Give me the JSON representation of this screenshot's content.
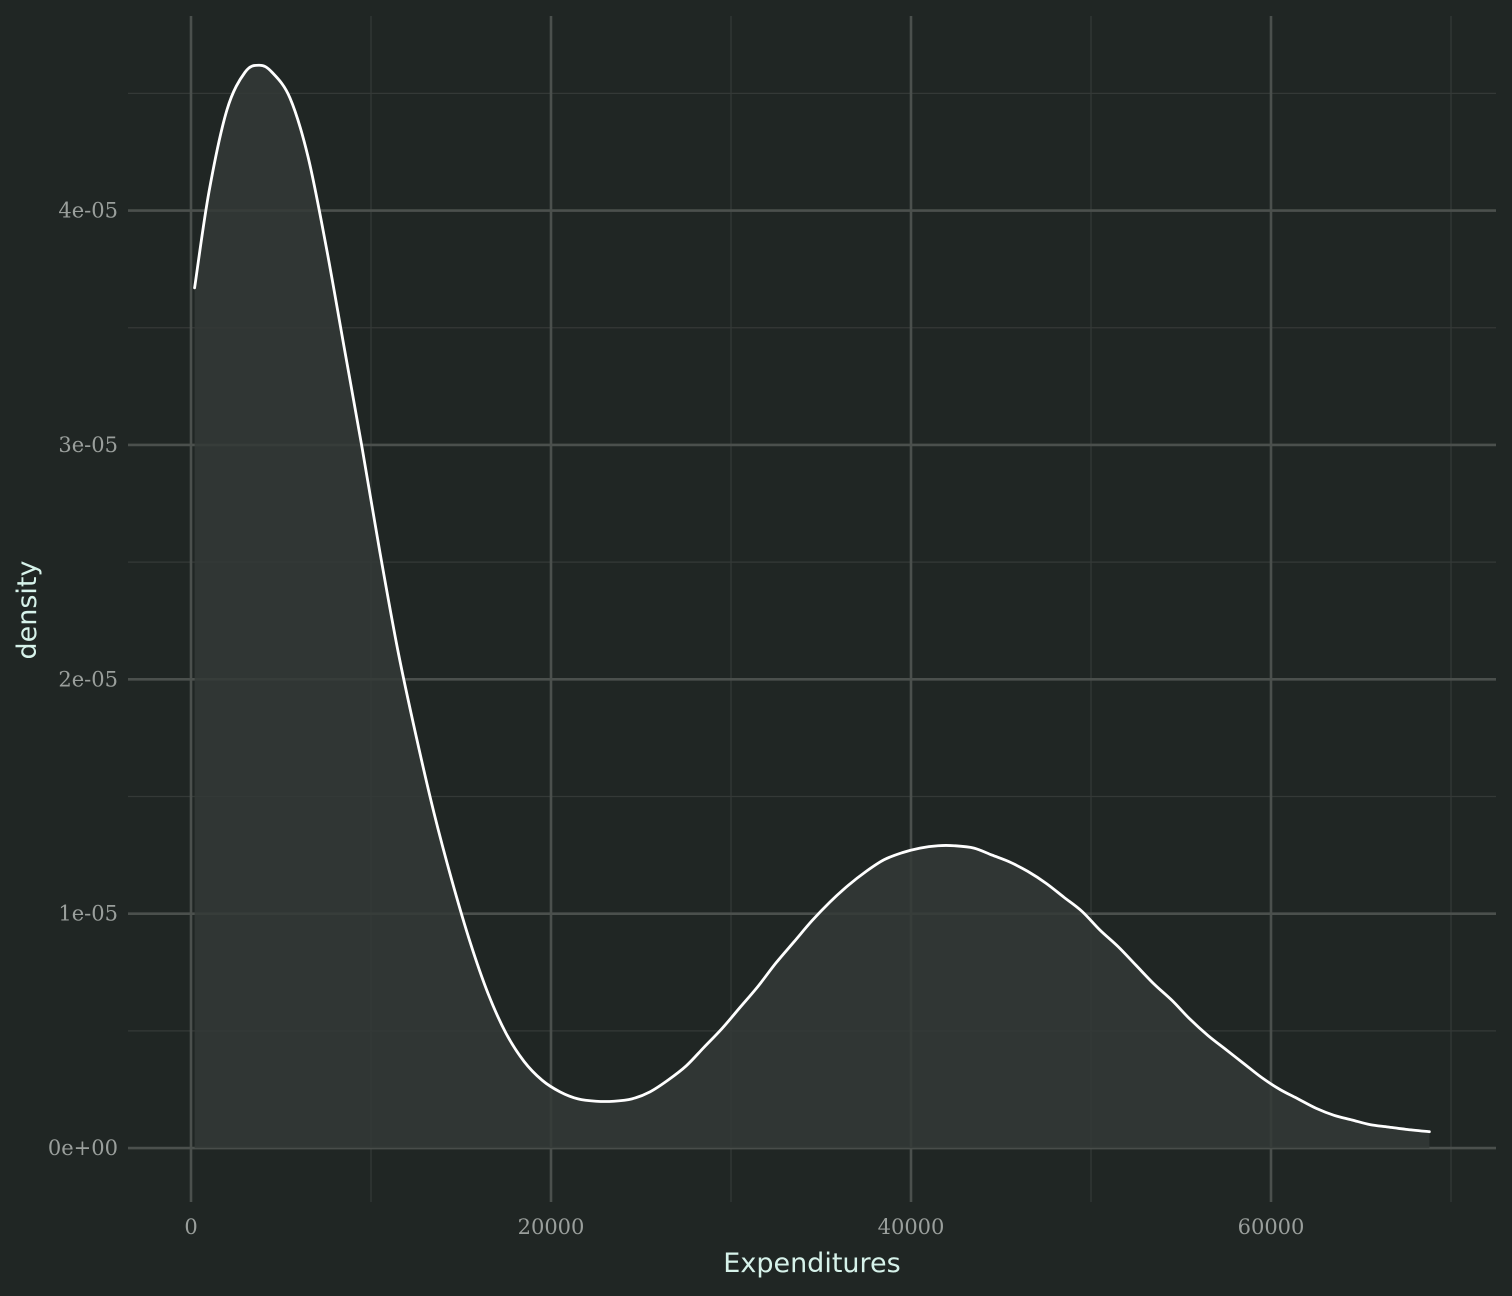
{
  "chart_data": {
    "type": "area",
    "title": "",
    "xlabel": "Expenditures",
    "ylabel": "density",
    "xlim": [
      -3500,
      72500
    ],
    "ylim": [
      -2.3e-06,
      4.83e-05
    ],
    "x_major_ticks": [
      0,
      20000,
      40000,
      60000
    ],
    "x_minor_ticks": [
      10000,
      30000,
      50000,
      70000
    ],
    "x_tick_labels": [
      "0",
      "20000",
      "40000",
      "60000"
    ],
    "y_major_ticks": [
      0,
      1e-05,
      2e-05,
      3e-05,
      4e-05
    ],
    "y_minor_ticks": [
      5e-06,
      1.5e-05,
      2.5e-05,
      3.5e-05,
      4.5e-05
    ],
    "y_tick_labels": [
      "0e+00",
      "1e-05",
      "2e-05",
      "3e-05",
      "4e-05"
    ],
    "grid": true,
    "legend": "none",
    "colors": {
      "background": "#202624",
      "major_grid": "#4b504d",
      "minor_grid": "#343937",
      "fill": "#343937",
      "line": "#ffffff",
      "tick_label": "#9a9f9c",
      "axis_title": "#d6f2ea"
    },
    "series": [
      {
        "x": [
          200,
          1000,
          2000,
          3000,
          3800,
          4500,
          5500,
          6500,
          7500,
          8500,
          9500,
          10500,
          11500,
          12500,
          13500,
          14500,
          15500,
          16500,
          17500,
          18500,
          19500,
          20500,
          21500,
          22500,
          23500,
          24500,
          25500,
          26500,
          27500,
          28500,
          29500,
          30500,
          31500,
          32500,
          33500,
          34500,
          35500,
          36500,
          37500,
          38500,
          39500,
          40500,
          41500,
          42400,
          43500,
          44500,
          45500,
          46500,
          47500,
          48500,
          49500,
          50500,
          51500,
          52500,
          53500,
          54500,
          55500,
          56500,
          57500,
          58500,
          59500,
          60500,
          61500,
          62500,
          63500,
          64500,
          65500,
          66500,
          67500,
          68800
        ],
        "y": [
          3.67e-05,
          4.08e-05,
          4.43e-05,
          4.59e-05,
          4.62e-05,
          4.59e-05,
          4.48e-05,
          4.23e-05,
          3.85e-05,
          3.42e-05,
          2.99e-05,
          2.54e-05,
          2.12e-05,
          1.76e-05,
          1.43e-05,
          1.14e-05,
          8.8e-06,
          6.6e-06,
          4.9e-06,
          3.7e-06,
          2.9e-06,
          2.4e-06,
          2.1e-06,
          2e-06,
          2e-06,
          2.1e-06,
          2.4e-06,
          2.9e-06,
          3.5e-06,
          4.3e-06,
          5.1e-06,
          6e-06,
          6.9e-06,
          7.9e-06,
          8.8e-06,
          9.7e-06,
          1.05e-05,
          1.12e-05,
          1.18e-05,
          1.23e-05,
          1.26e-05,
          1.28e-05,
          1.29e-05,
          1.29e-05,
          1.28e-05,
          1.25e-05,
          1.22e-05,
          1.18e-05,
          1.13e-05,
          1.07e-05,
          1.01e-05,
          9.3e-06,
          8.6e-06,
          7.8e-06,
          7e-06,
          6.3e-06,
          5.5e-06,
          4.8e-06,
          4.2e-06,
          3.6e-06,
          3e-06,
          2.5e-06,
          2.1e-06,
          1.7e-06,
          1.4e-06,
          1.2e-06,
          1e-06,
          9e-07,
          8e-07,
          7e-07
        ]
      }
    ]
  }
}
